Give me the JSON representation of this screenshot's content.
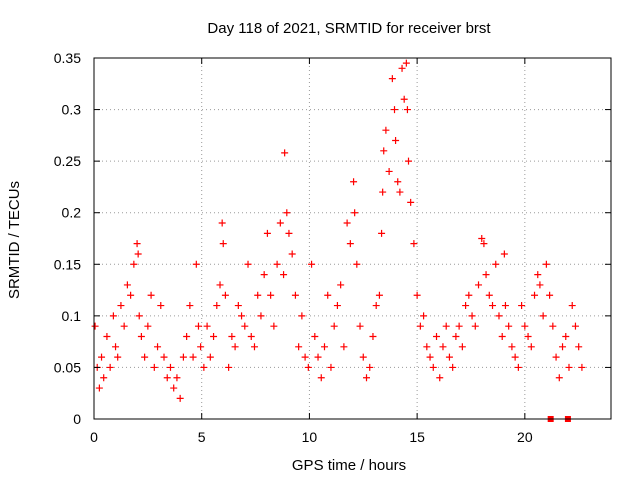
{
  "chart_data": {
    "type": "scatter",
    "title": "Day 118 of 2021, SRMTID for receiver brst",
    "xlabel": "GPS time / hours",
    "ylabel": "SRMTID / TECUs",
    "xlim": [
      0,
      24
    ],
    "ylim": [
      0,
      0.35
    ],
    "xticks": [
      0,
      5,
      10,
      15,
      20
    ],
    "xtick_labels": [
      "0",
      "5",
      "10",
      "15",
      "20"
    ],
    "yticks": [
      0,
      0.05,
      0.1,
      0.15,
      0.2,
      0.25,
      0.3,
      0.35
    ],
    "ytick_labels": [
      "0",
      "0.05",
      "0.1",
      "0.15",
      "0.2",
      "0.25",
      "0.3",
      "0.35"
    ],
    "grid": true,
    "marker": "plus",
    "color": "#ff0000",
    "series": [
      {
        "name": "SRMTID",
        "x": [
          0.05,
          0.15,
          0.25,
          0.35,
          0.45,
          0.6,
          0.75,
          0.9,
          1.0,
          1.1,
          1.25,
          1.4,
          1.55,
          1.7,
          1.85,
          2.0,
          2.05,
          2.1,
          2.2,
          2.35,
          2.5,
          2.65,
          2.8,
          2.95,
          3.1,
          3.25,
          3.4,
          3.55,
          3.7,
          3.85,
          4.0,
          4.15,
          4.3,
          4.45,
          4.6,
          4.75,
          4.85,
          4.95,
          5.1,
          5.25,
          5.4,
          5.55,
          5.7,
          5.85,
          5.95,
          6.0,
          6.1,
          6.25,
          6.4,
          6.55,
          6.7,
          6.85,
          7.0,
          7.15,
          7.3,
          7.45,
          7.6,
          7.75,
          7.9,
          8.05,
          8.2,
          8.35,
          8.5,
          8.65,
          8.8,
          8.85,
          8.95,
          9.05,
          9.2,
          9.35,
          9.5,
          9.65,
          9.8,
          9.95,
          10.1,
          10.25,
          10.4,
          10.55,
          10.7,
          10.85,
          11.0,
          11.15,
          11.3,
          11.45,
          11.6,
          11.75,
          11.9,
          12.05,
          12.1,
          12.2,
          12.35,
          12.5,
          12.65,
          12.8,
          12.95,
          13.1,
          13.25,
          13.35,
          13.4,
          13.45,
          13.55,
          13.7,
          13.85,
          13.95,
          14.0,
          14.1,
          14.2,
          14.3,
          14.4,
          14.5,
          14.55,
          14.6,
          14.7,
          14.85,
          15.0,
          15.15,
          15.3,
          15.45,
          15.6,
          15.75,
          15.9,
          16.05,
          16.2,
          16.35,
          16.5,
          16.65,
          16.8,
          16.95,
          17.1,
          17.25,
          17.4,
          17.55,
          17.7,
          17.85,
          18.0,
          18.1,
          18.2,
          18.35,
          18.5,
          18.65,
          18.8,
          18.95,
          19.05,
          19.1,
          19.25,
          19.4,
          19.55,
          19.7,
          19.85,
          20.0,
          20.15,
          20.3,
          20.45,
          20.6,
          20.7,
          20.85,
          21.0,
          21.15,
          21.3,
          21.45,
          21.6,
          21.75,
          21.9,
          22.05,
          22.2,
          22.35,
          22.5,
          22.65
        ],
        "y": [
          0.09,
          0.05,
          0.03,
          0.06,
          0.04,
          0.08,
          0.05,
          0.1,
          0.07,
          0.06,
          0.11,
          0.09,
          0.13,
          0.12,
          0.15,
          0.17,
          0.16,
          0.1,
          0.08,
          0.06,
          0.09,
          0.12,
          0.05,
          0.07,
          0.11,
          0.06,
          0.04,
          0.05,
          0.03,
          0.04,
          0.02,
          0.06,
          0.08,
          0.11,
          0.06,
          0.15,
          0.09,
          0.07,
          0.05,
          0.09,
          0.06,
          0.08,
          0.11,
          0.13,
          0.19,
          0.17,
          0.12,
          0.05,
          0.08,
          0.07,
          0.11,
          0.1,
          0.09,
          0.15,
          0.08,
          0.07,
          0.12,
          0.1,
          0.14,
          0.18,
          0.12,
          0.09,
          0.15,
          0.19,
          0.14,
          0.258,
          0.2,
          0.18,
          0.16,
          0.12,
          0.07,
          0.1,
          0.06,
          0.05,
          0.15,
          0.08,
          0.06,
          0.04,
          0.07,
          0.12,
          0.05,
          0.09,
          0.11,
          0.13,
          0.07,
          0.19,
          0.17,
          0.23,
          0.2,
          0.15,
          0.09,
          0.06,
          0.04,
          0.05,
          0.08,
          0.11,
          0.12,
          0.18,
          0.22,
          0.26,
          0.28,
          0.24,
          0.33,
          0.3,
          0.27,
          0.23,
          0.22,
          0.34,
          0.31,
          0.345,
          0.3,
          0.25,
          0.21,
          0.17,
          0.12,
          0.09,
          0.1,
          0.07,
          0.06,
          0.05,
          0.08,
          0.04,
          0.07,
          0.09,
          0.06,
          0.05,
          0.08,
          0.09,
          0.07,
          0.11,
          0.12,
          0.1,
          0.09,
          0.13,
          0.175,
          0.17,
          0.14,
          0.12,
          0.11,
          0.15,
          0.1,
          0.08,
          0.16,
          0.11,
          0.09,
          0.07,
          0.06,
          0.05,
          0.11,
          0.09,
          0.08,
          0.07,
          0.12,
          0.14,
          0.13,
          0.1,
          0.15,
          0.12,
          0.09,
          0.06,
          0.04,
          0.07,
          0.08,
          0.05,
          0.11,
          0.09,
          0.07,
          0.05
        ]
      }
    ],
    "missing_data_markers_x": [
      21.2,
      22.0
    ]
  }
}
